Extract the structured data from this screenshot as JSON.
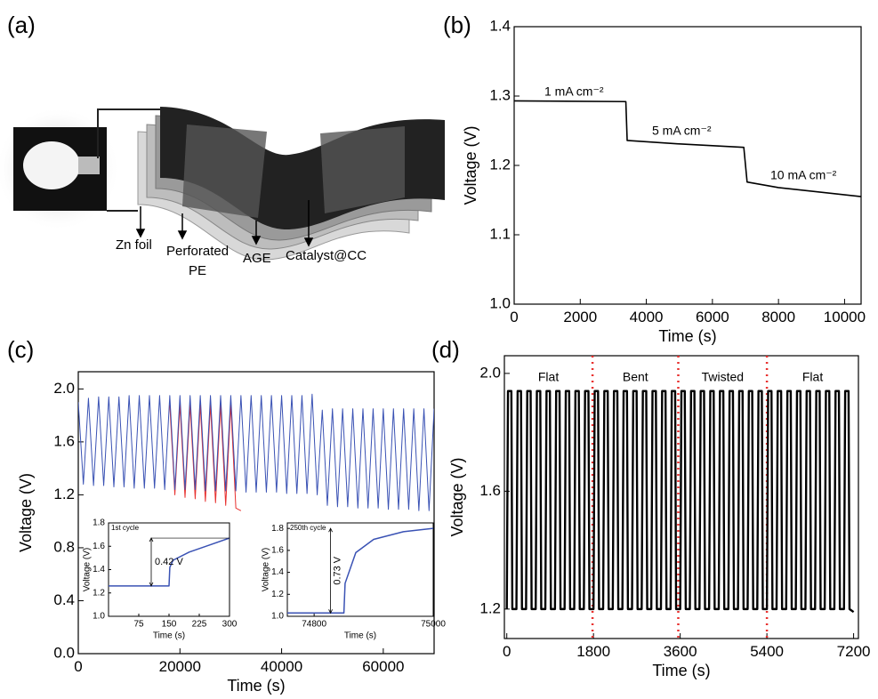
{
  "diagram": {
    "panel": "(a)",
    "labels": [
      "Zn foil",
      [
        "Perforated",
        "PE"
      ],
      "AGE",
      "Catalyst@CC"
    ]
  },
  "chart_data": [
    {
      "type": "line",
      "panel": "(b)",
      "xlabel": "Time (s)",
      "ylabel": "Voltage (V)",
      "xlim": [
        0,
        10500
      ],
      "ylim": [
        1.0,
        1.4
      ],
      "xticks": [
        0,
        2000,
        4000,
        6000,
        8000,
        10000
      ],
      "yticks": [
        {
          "value": 1.0,
          "label": "1.0"
        },
        1.1,
        1.2,
        1.3,
        1.4
      ],
      "annotations": [
        "1 mA cm⁻²",
        "5 mA cm⁻²",
        "10 mA cm⁻²"
      ],
      "series": [
        {
          "color": "#000000",
          "x": [
            0,
            3380,
            3420,
            5000,
            6950,
            7050,
            8000,
            10500
          ],
          "values": [
            1.293,
            1.292,
            1.236,
            1.231,
            1.226,
            1.176,
            1.168,
            1.155
          ]
        }
      ]
    },
    {
      "type": "line",
      "panel": "(c)",
      "xlabel": "Time (s)",
      "ylabel": "Voltage (V)",
      "xlim": [
        0,
        70000
      ],
      "ylim": [
        0,
        2.13
      ],
      "xticks": [
        0,
        20000,
        40000,
        60000
      ],
      "yticks": [
        {
          "value": 0,
          "label": "0.0"
        },
        0.4,
        0.8,
        1.2,
        1.6,
        {
          "value": 2,
          "label": "2.0"
        }
      ],
      "series": [
        {
          "color": "#e8312f",
          "x": [
            18000,
            19000,
            20000,
            21000,
            22000,
            23000,
            24000,
            25000,
            26000,
            27000,
            28000,
            29000,
            30000,
            31000,
            32000
          ],
          "values": [
            1.88,
            1.2,
            1.88,
            1.18,
            1.88,
            1.17,
            1.88,
            1.15,
            1.88,
            1.14,
            1.88,
            1.12,
            1.88,
            1.1,
            1.08
          ]
        },
        {
          "color": "#3a52b4",
          "x": [
            0,
            1000,
            2000,
            3000,
            4000,
            5000,
            6000,
            7000,
            8000,
            9000,
            10000,
            11000,
            12000,
            13000,
            14000,
            15000,
            16000,
            17000,
            18000,
            19000,
            20000,
            21000,
            22000,
            23000,
            24000,
            25000,
            26000,
            27000,
            28000,
            29000,
            30000,
            31000,
            32000,
            33000,
            34000,
            35000,
            36000,
            37000,
            38000,
            39000,
            40000,
            41000,
            42000,
            43000,
            44000,
            45000,
            46000,
            47000,
            48000,
            49000,
            50000,
            51000,
            52000,
            53000,
            54000,
            55000,
            56000,
            57000,
            58000,
            59000,
            60000,
            61000,
            62000,
            63000,
            64000,
            65000,
            66000,
            67000,
            68000,
            69000,
            70000
          ],
          "values": [
            1.9,
            1.28,
            1.93,
            1.27,
            1.94,
            1.27,
            1.94,
            1.26,
            1.94,
            1.26,
            1.95,
            1.25,
            1.95,
            1.25,
            1.95,
            1.25,
            1.95,
            1.24,
            1.95,
            1.24,
            1.95,
            1.24,
            1.95,
            1.24,
            1.95,
            1.23,
            1.95,
            1.23,
            1.95,
            1.23,
            1.95,
            1.23,
            1.95,
            1.22,
            1.95,
            1.22,
            1.95,
            1.22,
            1.95,
            1.22,
            1.95,
            1.21,
            1.95,
            1.21,
            1.95,
            1.21,
            1.96,
            1.2,
            1.84,
            1.12,
            1.85,
            1.11,
            1.85,
            1.11,
            1.85,
            1.1,
            1.85,
            1.1,
            1.85,
            1.1,
            1.85,
            1.09,
            1.85,
            1.09,
            1.85,
            1.09,
            1.85,
            1.08,
            1.85,
            1.08,
            1.85
          ]
        }
      ],
      "insets": [
        {
          "type": "line",
          "title": "1st cycle",
          "xlabel": "Time (s)",
          "ylabel": "Voltage (V)",
          "annotation": "0.42 V",
          "xlim": [
            0,
            300
          ],
          "ylim": [
            1.0,
            1.8
          ],
          "xticks": [
            75,
            150,
            225,
            300
          ],
          "yticks": [
            {
              "value": 1.0,
              "label": "1.0"
            },
            1.2,
            1.4,
            1.6,
            1.8
          ],
          "series": [
            {
              "color": "#3a52b4",
              "x": [
                0,
                150,
                152,
                160,
                200,
                250,
                300
              ],
              "values": [
                1.26,
                1.26,
                1.42,
                1.48,
                1.55,
                1.61,
                1.67
              ]
            }
          ]
        },
        {
          "type": "line",
          "title": "250th cycle",
          "xlabel": "Time (s)",
          "ylabel": "Voltage (V)",
          "annotation": "0.73 V",
          "xlim": [
            74755,
            75000
          ],
          "ylim": [
            1.0,
            1.85
          ],
          "xticks": [
            74800,
            75000
          ],
          "yticks": [
            {
              "value": 1.0,
              "label": "1.0"
            },
            1.2,
            1.4,
            1.6,
            1.8
          ],
          "series": [
            {
              "color": "#3a52b4",
              "x": [
                74755,
                74850,
                74852,
                74870,
                74900,
                74950,
                75000
              ],
              "values": [
                1.03,
                1.03,
                1.3,
                1.58,
                1.7,
                1.77,
                1.8
              ]
            }
          ]
        }
      ]
    },
    {
      "type": "line",
      "panel": "(d)",
      "xlabel": "Time (s)",
      "ylabel": "Voltage (V)",
      "xlim": [
        -50,
        7300
      ],
      "ylim": [
        1.1,
        2.06
      ],
      "xticks": [
        0,
        1800,
        3600,
        5400,
        7200
      ],
      "yticks": [
        1.2,
        1.6,
        {
          "value": 2,
          "label": "2.0"
        }
      ],
      "dividers": [
        1780,
        3560,
        5400
      ],
      "region_labels": [
        "Flat",
        "Bent",
        "Twisted",
        "Flat"
      ],
      "series": [
        {
          "color": "#000000",
          "x": [
            0,
            25,
            95,
            115,
            200,
            225,
            295,
            315,
            400,
            425,
            495,
            515,
            600,
            625,
            695,
            715,
            800,
            825,
            895,
            915,
            1000,
            1025,
            1095,
            1115,
            1200,
            1225,
            1295,
            1315,
            1400,
            1425,
            1495,
            1515,
            1600,
            1625,
            1695,
            1715,
            1800,
            1825,
            1895,
            1915,
            2000,
            2025,
            2095,
            2115,
            2200,
            2225,
            2295,
            2315,
            2400,
            2425,
            2495,
            2515,
            2600,
            2625,
            2695,
            2715,
            2800,
            2825,
            2895,
            2915,
            3000,
            3025,
            3095,
            3115,
            3200,
            3225,
            3295,
            3315,
            3400,
            3425,
            3495,
            3515,
            3600,
            3625,
            3695,
            3715,
            3800,
            3825,
            3895,
            3915,
            4000,
            4025,
            4095,
            4115,
            4200,
            4225,
            4295,
            4315,
            4400,
            4425,
            4495,
            4515,
            4600,
            4625,
            4695,
            4715,
            4800,
            4825,
            4895,
            4915,
            5000,
            5025,
            5095,
            5115,
            5200,
            5225,
            5295,
            5315,
            5400,
            5425,
            5495,
            5515,
            5600,
            5625,
            5695,
            5715,
            5800,
            5825,
            5895,
            5915,
            6000,
            6025,
            6095,
            6115,
            6200,
            6225,
            6295,
            6315,
            6400,
            6425,
            6495,
            6515,
            6600,
            6625,
            6695,
            6715,
            6800,
            6825,
            6895,
            6915,
            7000,
            7025,
            7095,
            7115,
            7200
          ],
          "values": [
            1.2,
            1.94,
            1.94,
            1.2,
            1.2,
            1.94,
            1.94,
            1.2,
            1.2,
            1.94,
            1.94,
            1.2,
            1.2,
            1.94,
            1.94,
            1.2,
            1.2,
            1.94,
            1.94,
            1.2,
            1.2,
            1.94,
            1.94,
            1.2,
            1.2,
            1.94,
            1.94,
            1.2,
            1.2,
            1.94,
            1.94,
            1.2,
            1.2,
            1.94,
            1.94,
            1.2,
            1.2,
            1.94,
            1.94,
            1.2,
            1.2,
            1.94,
            1.94,
            1.2,
            1.2,
            1.94,
            1.94,
            1.2,
            1.2,
            1.94,
            1.94,
            1.2,
            1.2,
            1.94,
            1.94,
            1.2,
            1.2,
            1.94,
            1.94,
            1.2,
            1.2,
            1.94,
            1.94,
            1.2,
            1.2,
            1.94,
            1.94,
            1.2,
            1.2,
            1.94,
            1.94,
            1.2,
            1.2,
            1.94,
            1.94,
            1.2,
            1.2,
            1.94,
            1.94,
            1.2,
            1.2,
            1.94,
            1.94,
            1.2,
            1.2,
            1.94,
            1.94,
            1.2,
            1.2,
            1.94,
            1.94,
            1.2,
            1.2,
            1.94,
            1.94,
            1.2,
            1.2,
            1.94,
            1.94,
            1.2,
            1.2,
            1.94,
            1.94,
            1.2,
            1.2,
            1.94,
            1.94,
            1.2,
            1.2,
            1.94,
            1.94,
            1.2,
            1.2,
            1.94,
            1.94,
            1.2,
            1.2,
            1.94,
            1.94,
            1.2,
            1.2,
            1.94,
            1.94,
            1.2,
            1.2,
            1.94,
            1.94,
            1.2,
            1.2,
            1.94,
            1.94,
            1.2,
            1.2,
            1.94,
            1.94,
            1.2,
            1.2,
            1.94,
            1.94,
            1.2,
            1.2,
            1.94,
            1.94,
            1.2,
            1.19
          ]
        }
      ]
    }
  ]
}
